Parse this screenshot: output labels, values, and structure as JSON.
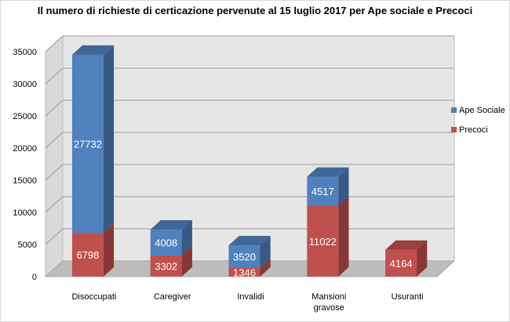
{
  "chart_data": {
    "type": "bar",
    "stacked": true,
    "three_d": true,
    "title": "Il numero di richieste di certicazione pervenute al 15 luglio 2017 per Ape sociale e Precoci",
    "xlabel": "",
    "ylabel": "",
    "ylim": [
      0,
      35000
    ],
    "yticks": [
      0,
      5000,
      10000,
      15000,
      20000,
      25000,
      30000,
      35000
    ],
    "grid": true,
    "legend_position": "right",
    "categories": [
      "Disoccupati",
      "Caregiver",
      "Invalidi",
      "Mansioni gravose",
      "Usuranti"
    ],
    "category_lines": [
      [
        "Disoccupati"
      ],
      [
        "Caregiver"
      ],
      [
        "Invalidi"
      ],
      [
        "Mansioni",
        "gravose"
      ],
      [
        "Usuranti"
      ]
    ],
    "series": [
      {
        "name": "Precoci",
        "color": "#c0504d",
        "values": [
          6798,
          3302,
          1346,
          11022,
          4164
        ]
      },
      {
        "name": "Ape Sociale",
        "color": "#4f81bd",
        "values": [
          27732,
          4008,
          3520,
          4517,
          null
        ]
      }
    ],
    "legend_order": [
      "Ape Sociale",
      "Precoci"
    ]
  }
}
